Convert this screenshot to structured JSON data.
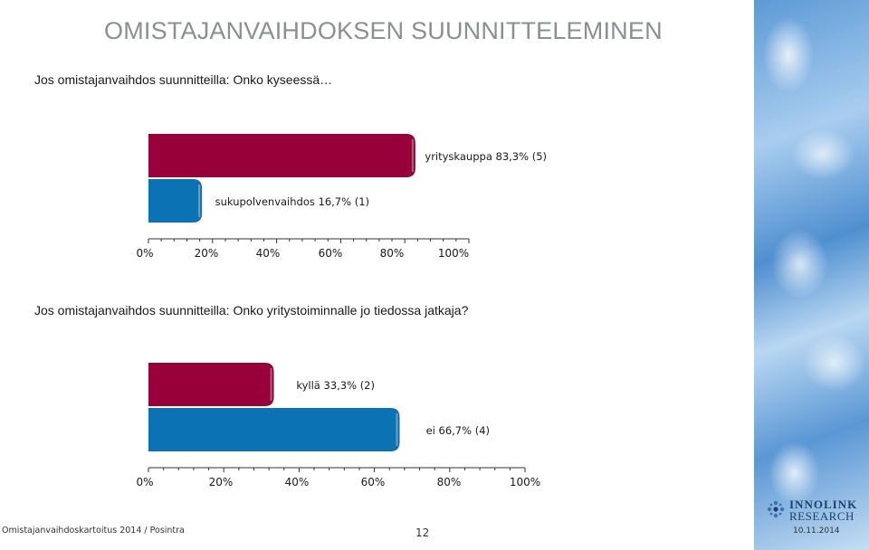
{
  "title": "OMISTAJANVAIHDOKSEN SUUNNITTELEMINEN",
  "chart1_heading": "Jos omistajanvaihdos suunnitteilla: Onko kyseessä…",
  "chart2_heading": "Jos omistajanvaihdos suunnitteilla: Onko yritystoiminnalle jo tiedossa jatkaja?",
  "footer": {
    "left": "Omistajanvaihdoskartoitus 2014 / Posintra",
    "page": "12",
    "date": "10.11.2014"
  },
  "logo": {
    "line1": "INNOLINK",
    "line2": "RESEARCH"
  },
  "colors": {
    "maroon": "#98003a",
    "blue": "#0b72b4"
  },
  "chart_data": [
    {
      "type": "bar",
      "orientation": "horizontal",
      "title": "",
      "xlabel": "",
      "ylabel": "",
      "xlim": [
        0,
        100
      ],
      "ticks": [
        "0%",
        "20%",
        "40%",
        "60%",
        "80%",
        "100%"
      ],
      "bars": [
        {
          "label": "yrityskauppa 83,3% (5)",
          "value": 83.3,
          "color": "#98003a"
        },
        {
          "label": "sukupolvenvaihdos 16,7% (1)",
          "value": 16.7,
          "color": "#0b72b4"
        }
      ]
    },
    {
      "type": "bar",
      "orientation": "horizontal",
      "title": "",
      "xlabel": "",
      "ylabel": "",
      "xlim": [
        0,
        100
      ],
      "ticks": [
        "0%",
        "20%",
        "40%",
        "60%",
        "80%",
        "100%"
      ],
      "bars": [
        {
          "label": "kyllä 33,3% (2)",
          "value": 33.3,
          "color": "#98003a"
        },
        {
          "label": "ei 66,7% (4)",
          "value": 66.7,
          "color": "#0b72b4"
        }
      ]
    }
  ]
}
